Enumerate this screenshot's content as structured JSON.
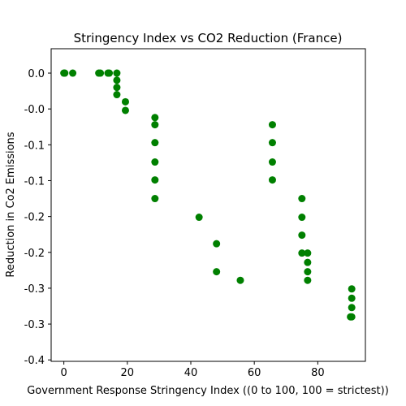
{
  "chart_data": {
    "type": "scatter",
    "title": "Stringency Index vs CO2 Reduction (France)",
    "xlabel": "Government Response Stringency Index ((0 to 100, 100 = strictest))",
    "ylabel": "Reduction in Co2 Emissions",
    "xlim": [
      -4,
      95
    ],
    "ylim": [
      -0.402,
      0.034
    ],
    "x_ticks": [
      0,
      20,
      40,
      60,
      80
    ],
    "y_ticks": [
      {
        "value": 0.0,
        "label": "0.0"
      },
      {
        "value": -0.05,
        "label": "-0.0"
      },
      {
        "value": -0.1,
        "label": "-0.1"
      },
      {
        "value": -0.15,
        "label": "-0.1"
      },
      {
        "value": -0.2,
        "label": "-0.2"
      },
      {
        "value": -0.25,
        "label": "-0.2"
      },
      {
        "value": -0.3,
        "label": "-0.3"
      },
      {
        "value": -0.35,
        "label": "-0.3"
      },
      {
        "value": -0.4,
        "label": "-0.4"
      }
    ],
    "marker_color": "#008000",
    "grid": false,
    "points": [
      {
        "x": 0,
        "y": 0.0
      },
      {
        "x": 0.3,
        "y": 0.0
      },
      {
        "x": 2.8,
        "y": 0.0
      },
      {
        "x": 11,
        "y": 0.0
      },
      {
        "x": 11.5,
        "y": 0.0
      },
      {
        "x": 13.9,
        "y": 0.0
      },
      {
        "x": 14.3,
        "y": 0.0
      },
      {
        "x": 16.7,
        "y": 0.0
      },
      {
        "x": 16.7,
        "y": -0.01
      },
      {
        "x": 16.7,
        "y": -0.02
      },
      {
        "x": 16.7,
        "y": -0.03
      },
      {
        "x": 19.4,
        "y": -0.04
      },
      {
        "x": 19.4,
        "y": -0.052
      },
      {
        "x": 28.7,
        "y": -0.062
      },
      {
        "x": 28.7,
        "y": -0.072
      },
      {
        "x": 28.7,
        "y": -0.097
      },
      {
        "x": 28.7,
        "y": -0.124
      },
      {
        "x": 28.7,
        "y": -0.149
      },
      {
        "x": 28.7,
        "y": -0.175
      },
      {
        "x": 42.6,
        "y": -0.201
      },
      {
        "x": 48.1,
        "y": -0.238
      },
      {
        "x": 48.1,
        "y": -0.277
      },
      {
        "x": 55.6,
        "y": -0.289
      },
      {
        "x": 65.7,
        "y": -0.072
      },
      {
        "x": 65.7,
        "y": -0.097
      },
      {
        "x": 65.7,
        "y": -0.124
      },
      {
        "x": 65.7,
        "y": -0.149
      },
      {
        "x": 75,
        "y": -0.175
      },
      {
        "x": 75,
        "y": -0.201
      },
      {
        "x": 75,
        "y": -0.226
      },
      {
        "x": 75,
        "y": -0.251
      },
      {
        "x": 76.8,
        "y": -0.251
      },
      {
        "x": 76.8,
        "y": -0.264
      },
      {
        "x": 76.8,
        "y": -0.277
      },
      {
        "x": 76.8,
        "y": -0.289
      },
      {
        "x": 90.7,
        "y": -0.301
      },
      {
        "x": 90.7,
        "y": -0.314
      },
      {
        "x": 90.7,
        "y": -0.327
      },
      {
        "x": 90.7,
        "y": -0.34
      },
      {
        "x": 90.3,
        "y": -0.34
      }
    ]
  }
}
